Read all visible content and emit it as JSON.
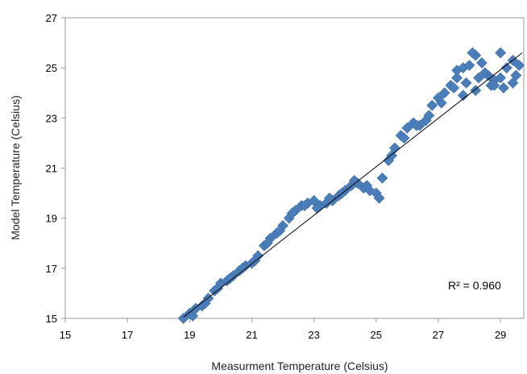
{
  "chart_data": {
    "type": "scatter",
    "title": "",
    "xlabel": "Measurment Temperature (Celsius)",
    "ylabel": "Model Temperature (Celsius)",
    "xlim": [
      15,
      29.75
    ],
    "ylim": [
      15,
      27
    ],
    "x_ticks": [
      "15",
      "17",
      "19",
      "21",
      "23",
      "25",
      "27",
      "29"
    ],
    "y_ticks": [
      "15",
      "17",
      "19",
      "21",
      "23",
      "25",
      "27"
    ],
    "grid": false,
    "legend": "none",
    "annotation": "R² = 0.960",
    "marker": "diamond",
    "colors": {
      "points": "#4A7EBB",
      "trendline": "#000000"
    },
    "trendline": {
      "x": [
        18.8,
        29.7
      ],
      "y": [
        15.05,
        25.6
      ]
    },
    "series": [
      {
        "x": [
          18.8,
          19.0,
          19.2,
          19.4,
          19.6,
          19.8,
          20.0,
          20.2,
          20.4,
          20.6,
          20.8,
          21.0,
          21.2,
          21.4,
          21.6,
          21.8,
          22.0,
          22.2,
          22.4,
          22.6,
          22.8,
          23.0,
          23.2,
          23.4,
          23.6,
          23.8,
          24.0,
          24.2,
          24.4,
          24.6,
          24.8,
          25.0,
          25.2,
          25.4,
          25.6,
          25.8,
          26.0,
          26.2,
          26.4,
          26.6,
          26.8,
          27.0,
          27.2,
          27.4,
          27.6,
          27.8,
          28.0,
          28.2,
          28.4,
          28.6,
          28.8,
          29.0,
          29.2,
          29.4,
          29.6,
          19.1,
          19.5,
          19.9,
          20.3,
          20.7,
          21.1,
          21.5,
          21.9,
          22.3,
          22.7,
          23.1,
          23.5,
          23.9,
          24.3,
          24.7,
          25.1,
          25.5,
          25.9,
          26.3,
          26.7,
          27.1,
          27.5,
          27.9,
          28.3,
          28.7,
          29.1,
          29.5,
          27.6,
          28.1,
          28.5,
          29.0,
          29.4,
          27.8,
          28.2,
          28.8
        ],
        "y": [
          15.0,
          15.2,
          15.4,
          15.5,
          15.8,
          16.1,
          16.4,
          16.5,
          16.7,
          16.9,
          17.1,
          17.2,
          17.5,
          17.9,
          18.2,
          18.4,
          18.7,
          19.0,
          19.3,
          19.5,
          19.6,
          19.7,
          19.5,
          19.6,
          19.7,
          19.9,
          20.1,
          20.3,
          20.4,
          20.2,
          20.1,
          20.0,
          20.6,
          21.3,
          21.8,
          22.3,
          22.6,
          22.8,
          22.7,
          22.9,
          23.5,
          23.8,
          24.0,
          24.3,
          24.6,
          25.0,
          25.1,
          25.5,
          25.2,
          24.7,
          24.5,
          24.6,
          25.0,
          25.3,
          25.1,
          15.1,
          15.6,
          16.2,
          16.6,
          17.0,
          17.3,
          18.0,
          18.5,
          19.2,
          19.5,
          19.4,
          19.8,
          20.0,
          20.5,
          20.3,
          19.8,
          21.5,
          22.2,
          22.7,
          23.1,
          23.6,
          24.2,
          24.4,
          24.6,
          24.3,
          24.2,
          24.7,
          24.9,
          25.6,
          24.8,
          25.6,
          24.4,
          23.9,
          24.1,
          24.3
        ]
      }
    ]
  }
}
